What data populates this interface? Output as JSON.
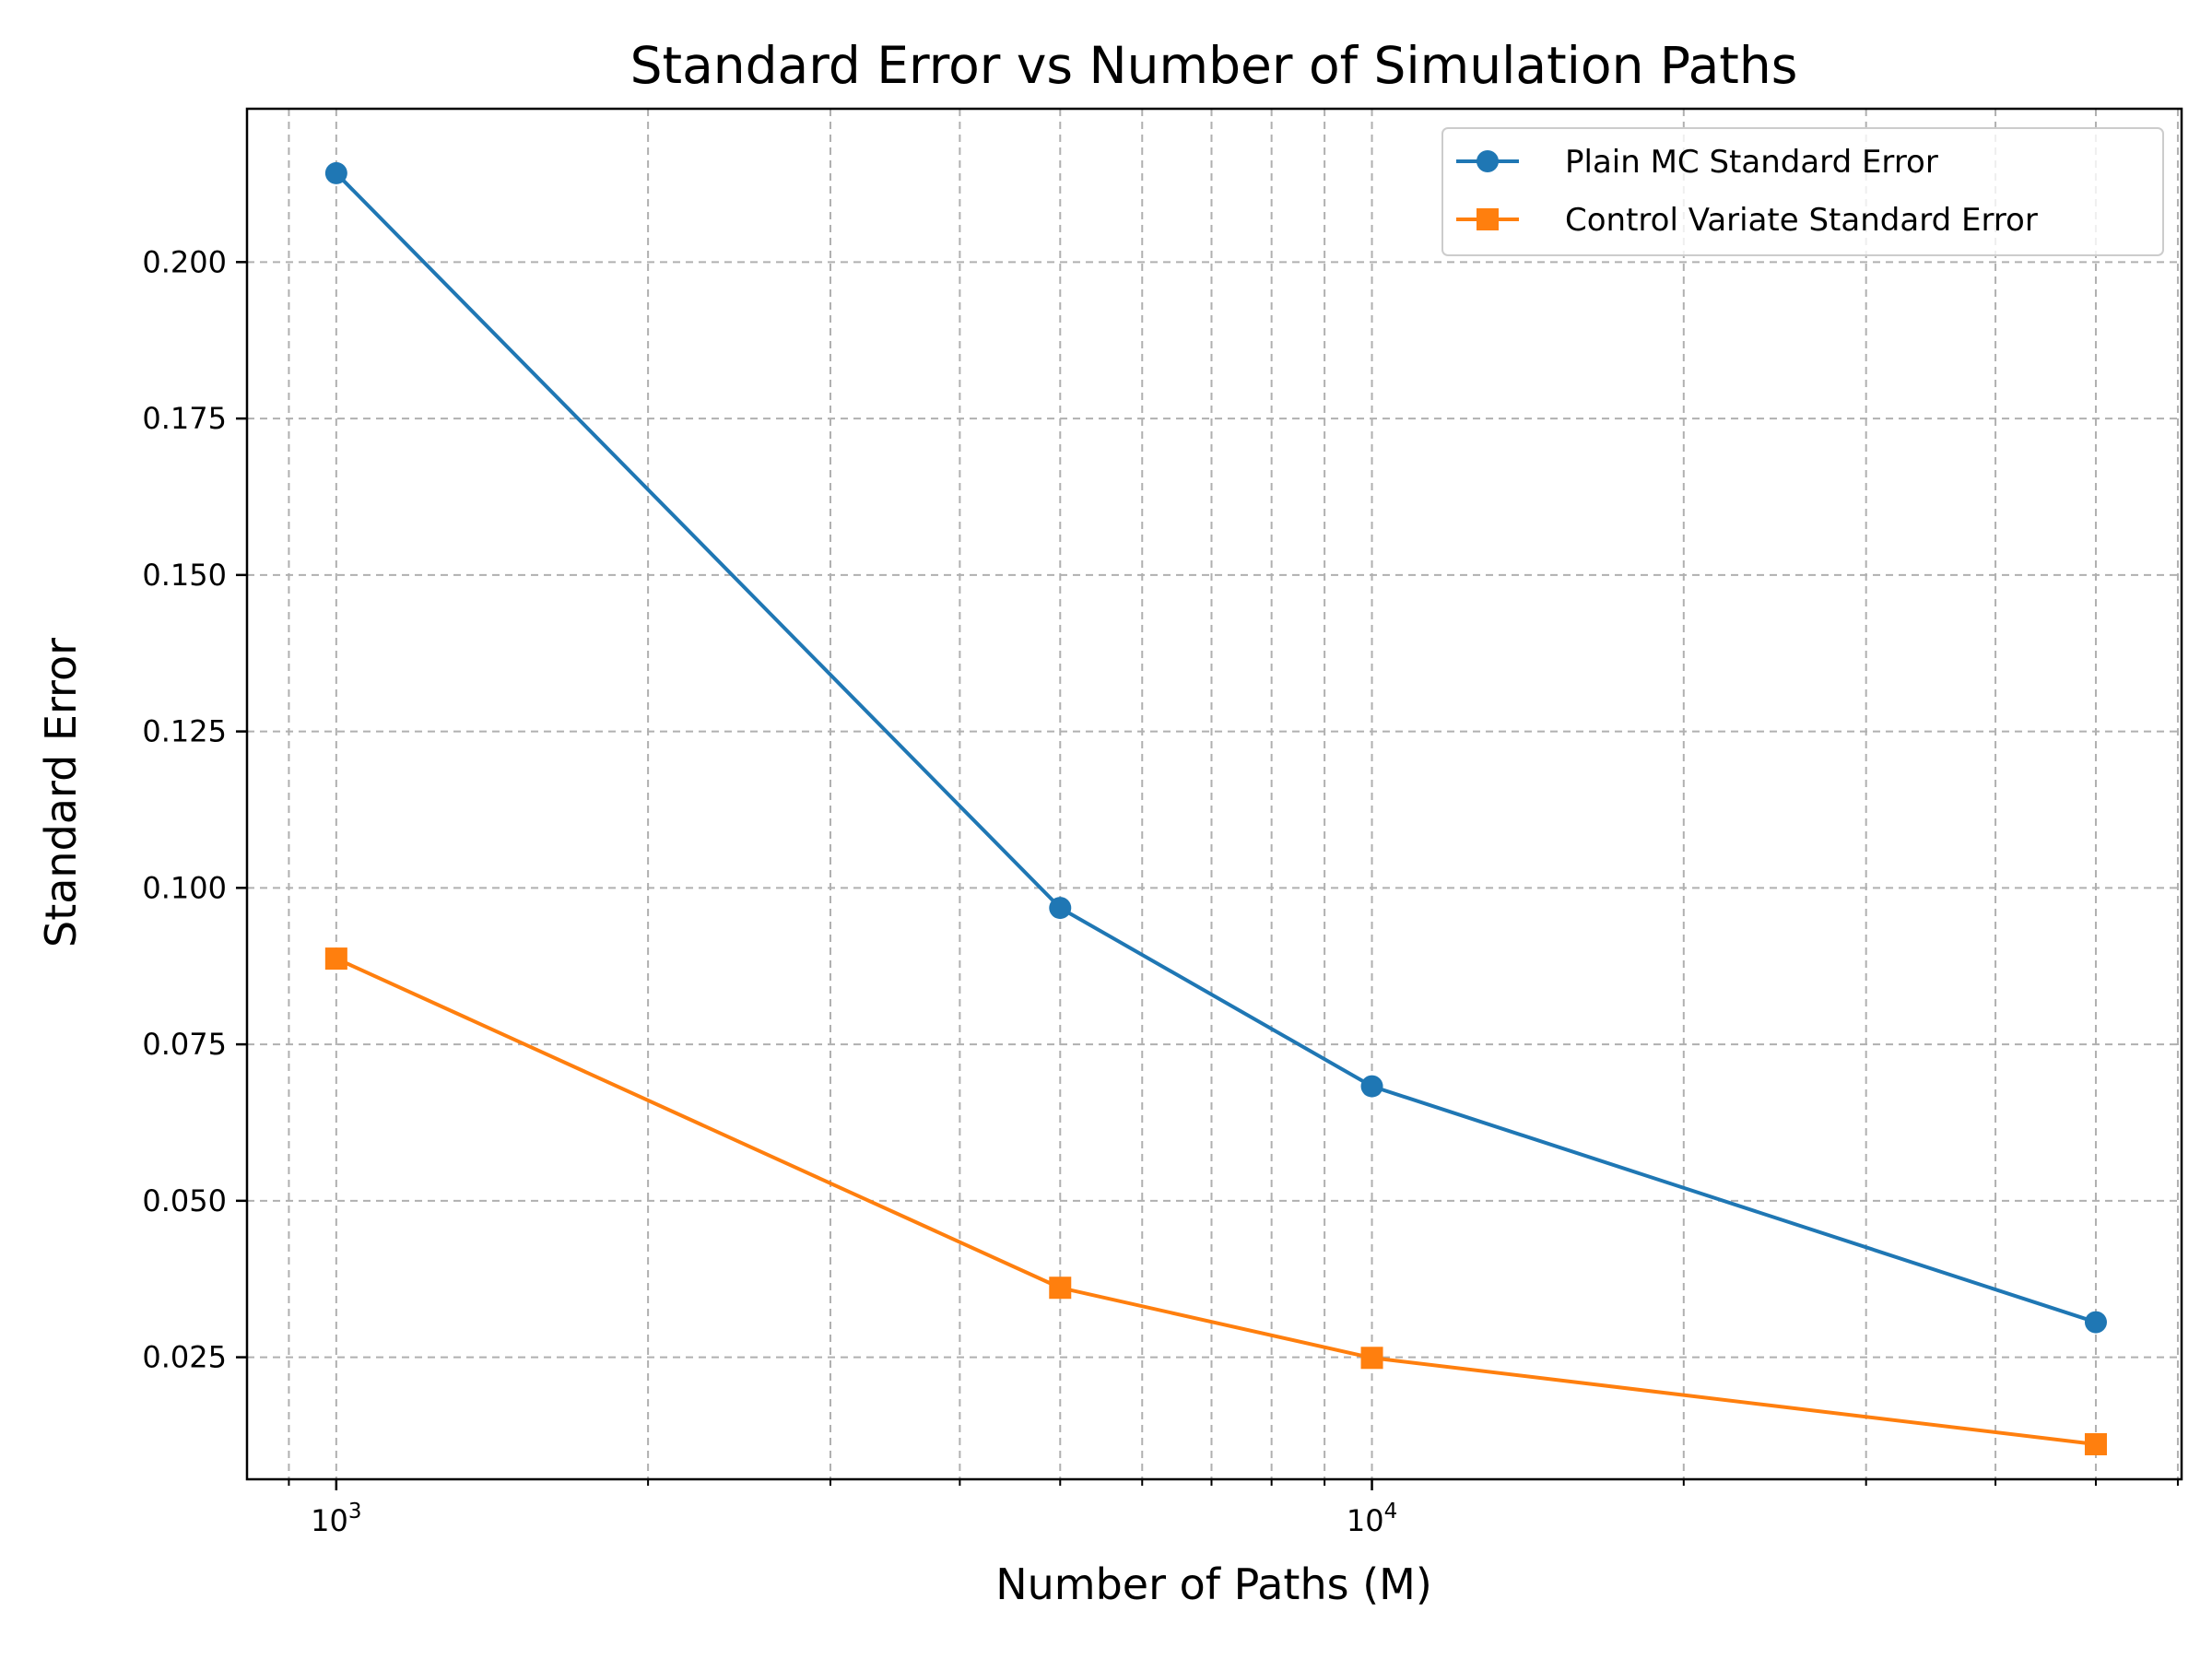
{
  "chart_data": {
    "type": "line",
    "title": "Standard Error vs Number of Simulation Paths",
    "xlabel": "Number of Paths (M)",
    "ylabel": "Standard Error",
    "xscale": "log",
    "xlim": [
      820,
      60500
    ],
    "ylim": [
      0.0055,
      0.2245
    ],
    "x": [
      1000,
      5000,
      10000,
      50000
    ],
    "x_tick_values": [
      1000,
      10000
    ],
    "x_tick_labels": [
      {
        "base": "10",
        "exp": "3"
      },
      {
        "base": "10",
        "exp": "4"
      }
    ],
    "y_ticks": [
      0.025,
      0.05,
      0.075,
      0.1,
      0.125,
      0.15,
      0.175,
      0.2
    ],
    "y_tick_labels": [
      "0.025",
      "0.050",
      "0.075",
      "0.100",
      "0.125",
      "0.150",
      "0.175",
      "0.200"
    ],
    "grid": true,
    "legend_position": "top-right",
    "series": [
      {
        "name": "Plain MC Standard Error",
        "values": [
          0.2142,
          0.0968,
          0.0683,
          0.0306
        ],
        "color": "#1f77b4",
        "marker": "circle"
      },
      {
        "name": "Control Variate Standard Error",
        "values": [
          0.0887,
          0.0361,
          0.0249,
          0.0111
        ],
        "color": "#ff7f0e",
        "marker": "square"
      }
    ]
  }
}
